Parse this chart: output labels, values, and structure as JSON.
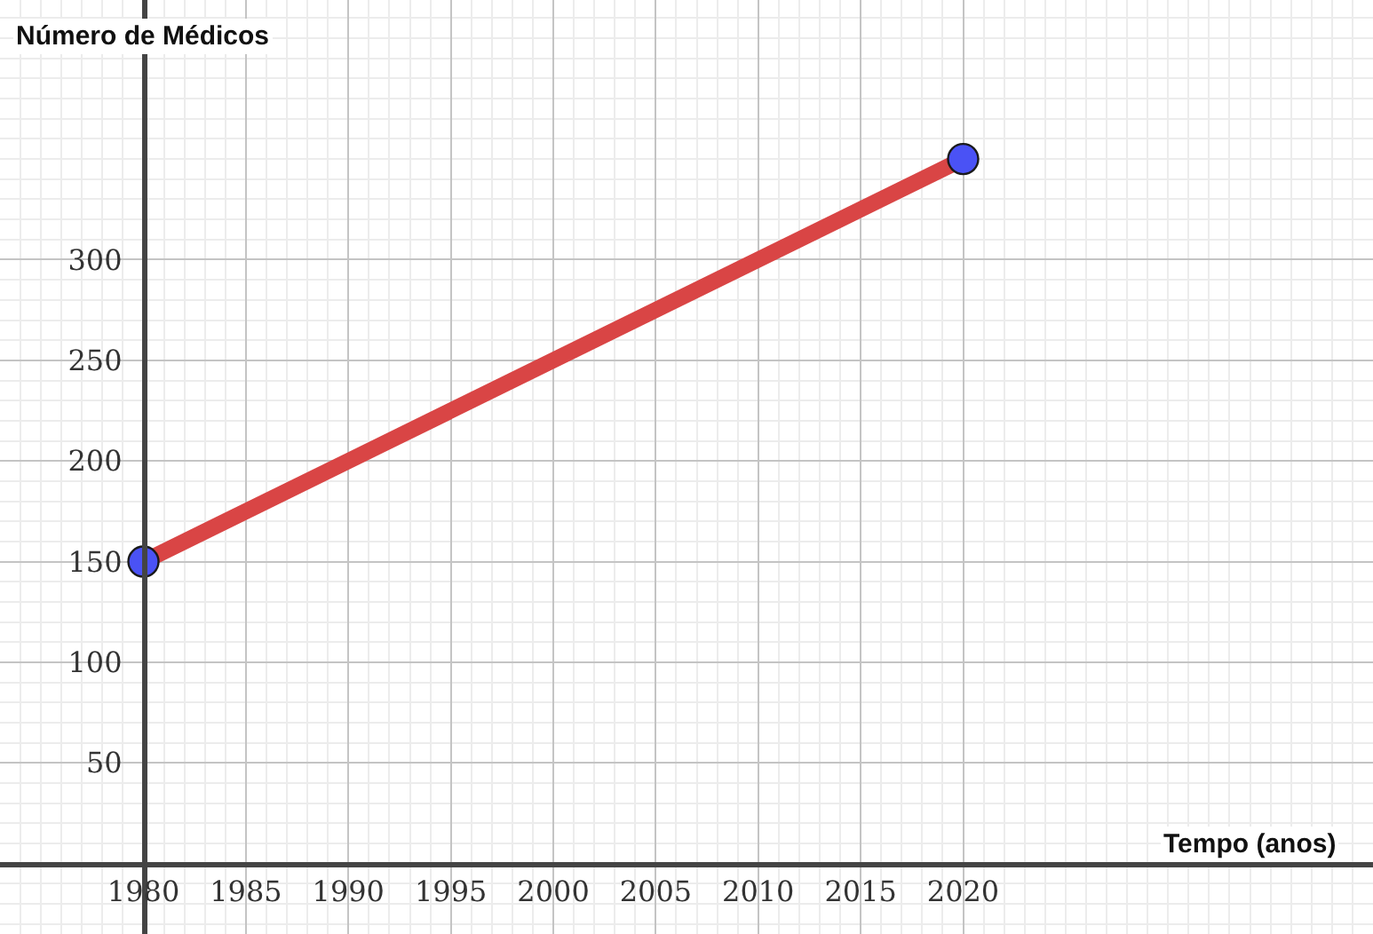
{
  "chart_data": {
    "type": "line",
    "xlabel": "Tempo (anos)",
    "ylabel": "Número de Médicos",
    "x": [
      1980,
      2020
    ],
    "series": [
      {
        "color": "#d94545",
        "values": [
          150,
          350
        ]
      },
      {
        "type": "scatter",
        "color": "#4a52f5",
        "marker": "circle",
        "values": [
          150,
          350
        ]
      }
    ],
    "line_style": "solid",
    "grid": true,
    "xlim": [
      1973,
      2040
    ],
    "ylim": [
      -35,
      429
    ],
    "xticks": [
      1980,
      1985,
      1990,
      1995,
      2000,
      2005,
      2010,
      2015,
      2020
    ],
    "yticks": [
      50,
      100,
      150,
      200,
      250,
      300
    ]
  }
}
